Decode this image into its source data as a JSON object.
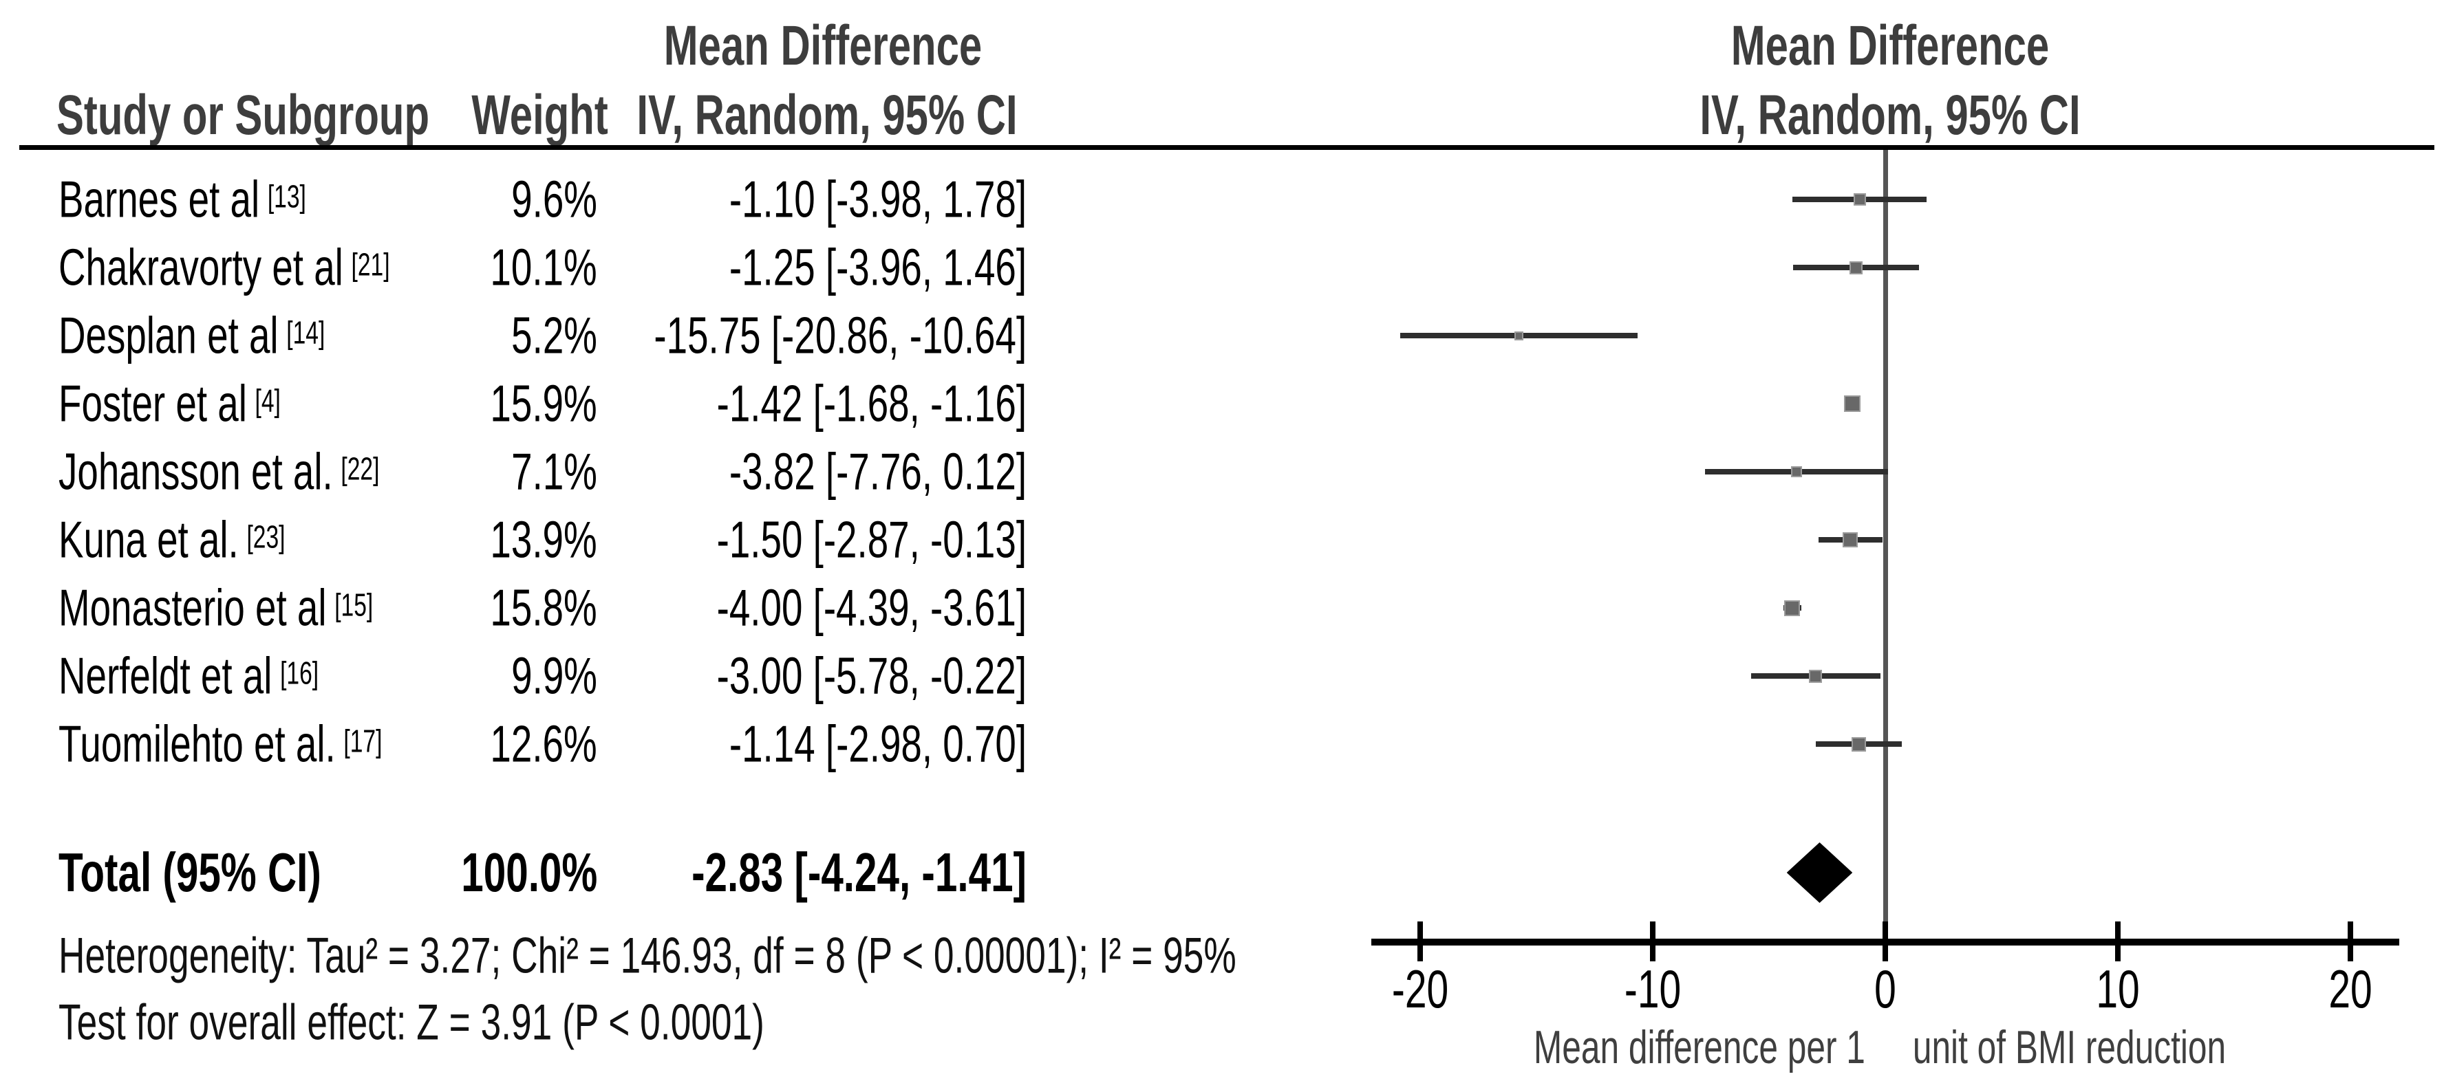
{
  "figure": {
    "effect_label": "Mean Difference",
    "method_label": "IV, Random, 95% CI",
    "col_study": "Study or Subgroup",
    "col_weight": "Weight"
  },
  "chart_data": {
    "type": "forest_plot",
    "effect_measure": "Mean Difference",
    "model": "IV, Random, 95% CI",
    "studies": [
      {
        "name": "Barnes et al",
        "ref": "[13]",
        "weight": "9.6%",
        "weight_pct": 9.6,
        "md": -1.1,
        "ci_low": -3.98,
        "ci_high": 1.78,
        "label": "-1.10 [-3.98, 1.78]"
      },
      {
        "name": "Chakravorty et al",
        "ref": "[21]",
        "weight": "10.1%",
        "weight_pct": 10.1,
        "md": -1.25,
        "ci_low": -3.96,
        "ci_high": 1.46,
        "label": "-1.25 [-3.96, 1.46]"
      },
      {
        "name": "Desplan et al",
        "ref": "[14]",
        "weight": "5.2%",
        "weight_pct": 5.2,
        "md": -15.75,
        "ci_low": -20.86,
        "ci_high": -10.64,
        "label": "-15.75 [-20.86, -10.64]"
      },
      {
        "name": "Foster et al",
        "ref": "[4]",
        "weight": "15.9%",
        "weight_pct": 15.9,
        "md": -1.42,
        "ci_low": -1.68,
        "ci_high": -1.16,
        "label": "-1.42 [-1.68, -1.16]"
      },
      {
        "name": "Johansson et al.",
        "ref": "[22]",
        "weight": "7.1%",
        "weight_pct": 7.1,
        "md": -3.82,
        "ci_low": -7.76,
        "ci_high": 0.12,
        "label": "-3.82 [-7.76, 0.12]"
      },
      {
        "name": "Kuna et al.",
        "ref": "[23]",
        "weight": "13.9%",
        "weight_pct": 13.9,
        "md": -1.5,
        "ci_low": -2.87,
        "ci_high": -0.13,
        "label": "-1.50 [-2.87, -0.13]"
      },
      {
        "name": "Monasterio et al",
        "ref": "[15]",
        "weight": "15.8%",
        "weight_pct": 15.8,
        "md": -4.0,
        "ci_low": -4.39,
        "ci_high": -3.61,
        "label": "-4.00 [-4.39, -3.61]"
      },
      {
        "name": "Nerfeldt et al",
        "ref": "[16]",
        "weight": "9.9%",
        "weight_pct": 9.9,
        "md": -3.0,
        "ci_low": -5.78,
        "ci_high": -0.22,
        "label": "-3.00 [-5.78, -0.22]"
      },
      {
        "name": "Tuomilehto et al.",
        "ref": "[17]",
        "weight": "12.6%",
        "weight_pct": 12.6,
        "md": -1.14,
        "ci_low": -2.98,
        "ci_high": 0.7,
        "label": "-1.14 [-2.98, 0.70]"
      }
    ],
    "total": {
      "name": "Total (95% CI)",
      "weight": "100.0%",
      "md": -2.83,
      "ci_low": -4.24,
      "ci_high": -1.41,
      "label": "-2.83 [-4.24, -1.41]"
    },
    "heterogeneity": "Heterogeneity: Tau² = 3.27; Chi² = 146.93, df = 8 (P < 0.00001); I² = 95%",
    "overall_effect": "Test for overall effect: Z = 3.91 (P < 0.0001)",
    "axis": {
      "min": -20,
      "max": 20,
      "ticks": [
        -20,
        -10,
        0,
        10,
        20
      ],
      "xlabel": "Mean difference per 1     unit of BMI reduction"
    },
    "colors": {
      "square": "#686868",
      "square_edge": "#9b9b9b",
      "ci_line": "#2e2e2e",
      "diamond": "#000000",
      "zero_line": "#555555",
      "axis": "#000000",
      "header_text": "#3d3d3d"
    }
  }
}
